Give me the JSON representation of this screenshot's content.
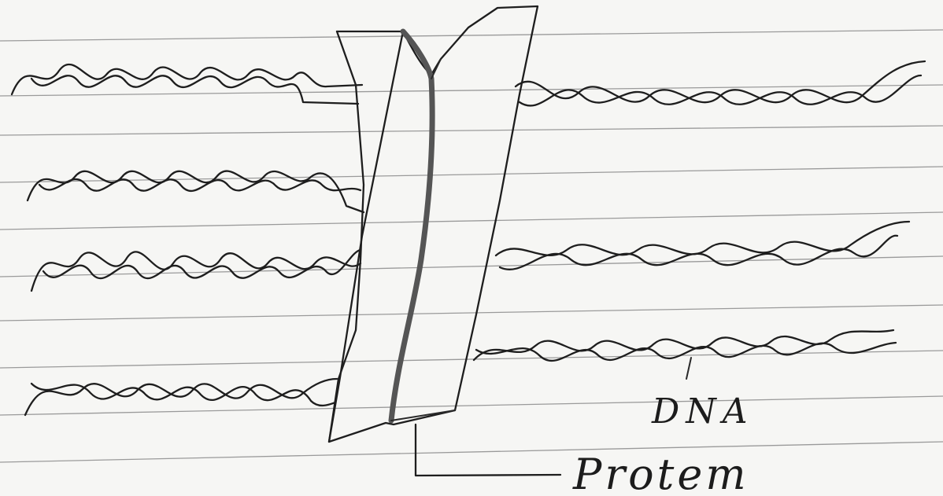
{
  "diagram": {
    "labels": {
      "dna": "DNA",
      "protein": "Protem"
    }
  },
  "colors": {
    "paper": "#f6f6f4",
    "ink": "#1e1e1e",
    "rule_line": "#9a9a9a",
    "protein_core": "#555555"
  }
}
